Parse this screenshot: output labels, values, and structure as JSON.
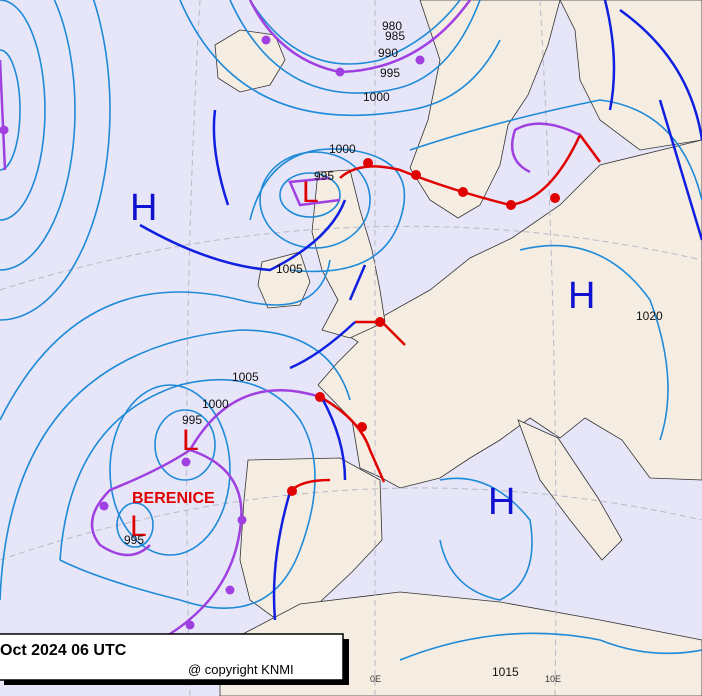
{
  "pressure_centers": [
    {
      "label": "H"
    },
    {
      "label": "H"
    },
    {
      "label": "H"
    },
    {
      "label": "L"
    },
    {
      "label": "L"
    },
    {
      "label": "L"
    }
  ],
  "storm_name": "BERENICE",
  "isobar_labels": [
    "980",
    "985",
    "990",
    "995",
    "1000",
    "1000",
    "995",
    "1005",
    "1005",
    "1000",
    "995",
    "995",
    "1020",
    "1015"
  ],
  "longitude_labels": [
    "0E",
    "10E"
  ],
  "footer": {
    "date": "Oct 2024 06 UTC",
    "copyright": "@ copyright KNMI"
  }
}
